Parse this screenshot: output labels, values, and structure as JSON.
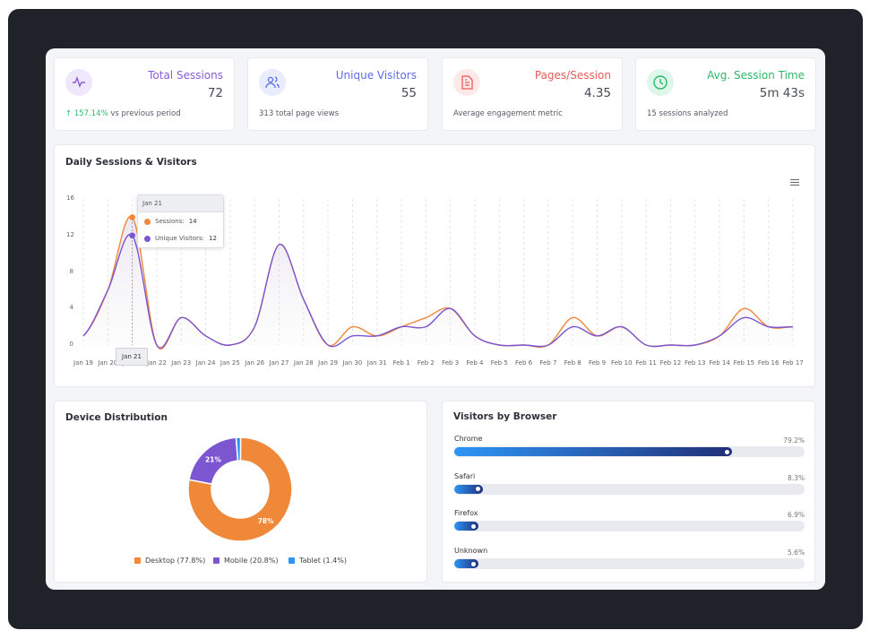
{
  "stats": [
    {
      "title": "Total Sessions",
      "value": "72",
      "sub_highlight": "↑ 157.14%",
      "sub": "vs previous period",
      "color": "#8a5cd6",
      "bg": "#efe7fb",
      "icon": "activity-icon"
    },
    {
      "title": "Unique Visitors",
      "value": "55",
      "sub": "313 total page views",
      "color": "#5b6ee8",
      "bg": "#e8ecfc",
      "icon": "users-icon"
    },
    {
      "title": "Pages/Session",
      "value": "4.35",
      "sub": "Average engagement metric",
      "color": "#ea5a5a",
      "bg": "#fde9e9",
      "icon": "document-icon"
    },
    {
      "title": "Avg. Session Time",
      "value": "5m 43s",
      "sub": "15 sessions analyzed",
      "color": "#2eb86a",
      "bg": "#dff6ea",
      "icon": "clock-icon"
    }
  ],
  "chart_data": [
    {
      "type": "line",
      "title": "Daily Sessions & Visitors",
      "categories": [
        "Jan 19",
        "Jan 20",
        "Jan 21",
        "Jan 22",
        "Jan 23",
        "Jan 24",
        "Jan 25",
        "Jan 26",
        "Jan 27",
        "Jan 28",
        "Jan 29",
        "Jan 30",
        "Jan 31",
        "Feb 1",
        "Feb 2",
        "Feb 3",
        "Feb 4",
        "Feb 5",
        "Feb 6",
        "Feb 7",
        "Feb 8",
        "Feb 9",
        "Feb 10",
        "Feb 11",
        "Feb 12",
        "Feb 13",
        "Feb 14",
        "Feb 15",
        "Feb 16",
        "Feb 17"
      ],
      "series": [
        {
          "name": "Sessions",
          "color": "#f0883a",
          "values": [
            1,
            6,
            14,
            0,
            3,
            1,
            0,
            2,
            11,
            5,
            0,
            2,
            1,
            2,
            3,
            4,
            1,
            0,
            0,
            0,
            3,
            1,
            2,
            0,
            0,
            0,
            1,
            4,
            2,
            2
          ]
        },
        {
          "name": "Unique Visitors",
          "color": "#7c55d0",
          "values": [
            1,
            6,
            12,
            0,
            3,
            1,
            0,
            2,
            11,
            5,
            0,
            1,
            1,
            2,
            2,
            4,
            1,
            0,
            0,
            0,
            2,
            1,
            2,
            0,
            0,
            0,
            1,
            3,
            2,
            2
          ]
        }
      ],
      "ylim": [
        0,
        16
      ],
      "yticks": [
        "0",
        "4",
        "8",
        "12",
        "16"
      ],
      "grid": "vertical dashed",
      "tooltip": {
        "date": "Jan 21",
        "rows": [
          {
            "label": "Sessions:",
            "value": "14"
          },
          {
            "label": "Unique Visitors:",
            "value": "12"
          }
        ]
      }
    },
    {
      "type": "pie",
      "title": "Device Distribution",
      "slices": [
        {
          "label": "Desktop (77.8%)",
          "value": 77.8,
          "data_label": "78%",
          "color": "#f0883a"
        },
        {
          "label": "Mobile (20.8%)",
          "value": 20.8,
          "data_label": "21%",
          "color": "#7c55d0"
        },
        {
          "label": "Tablet (1.4%)",
          "value": 1.4,
          "data_label": "",
          "color": "#2d95f5"
        }
      ]
    },
    {
      "type": "bar",
      "title": "Visitors by Browser",
      "categories": [
        "Chrome",
        "Safari",
        "Firefox",
        "Unknown"
      ],
      "values": [
        79.2,
        8.3,
        6.9,
        5.6
      ],
      "labels": [
        "79.2%",
        "8.3%",
        "6.9%",
        "5.6%"
      ]
    }
  ]
}
